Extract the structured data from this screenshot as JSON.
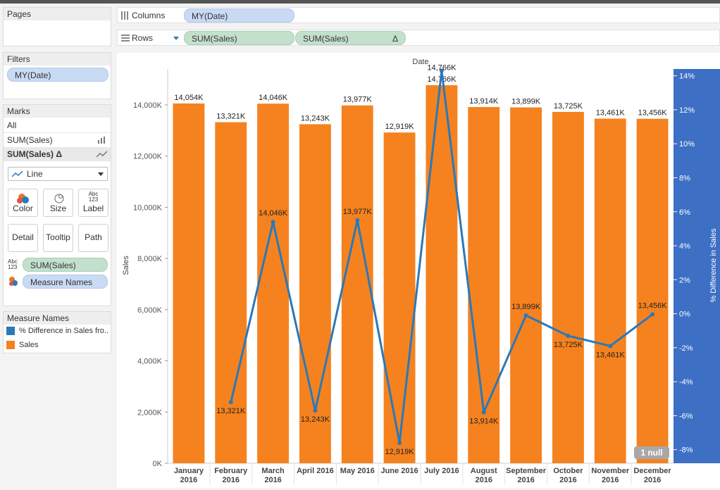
{
  "pages": {
    "title": "Pages"
  },
  "filters": {
    "title": "Filters",
    "pill": "MY(Date)"
  },
  "columns": {
    "label": "Columns",
    "pill": "MY(Date)"
  },
  "rows": {
    "label": "Rows",
    "pill1": "SUM(Sales)",
    "pill2": "SUM(Sales)",
    "pill2_delta": "Δ"
  },
  "marks": {
    "title": "Marks",
    "all": "All",
    "layer1": "SUM(Sales)",
    "layer2": "SUM(Sales)",
    "layer2_delta": "Δ",
    "mark_type": "Line",
    "buttons": {
      "color": "Color",
      "size": "Size",
      "label": "Label",
      "detail": "Detail",
      "tooltip": "Tooltip",
      "path": "Path"
    },
    "label_glyph_top": "Abc",
    "label_glyph_bottom": "123",
    "field_label": "SUM(Sales)",
    "field_color": "Measure Names"
  },
  "legend": {
    "title": "Measure Names",
    "items": [
      {
        "label": "% Difference in Sales fro..",
        "color": "#2c78b8"
      },
      {
        "label": "Sales",
        "color": "#f5821f"
      }
    ]
  },
  "chart_data": {
    "type": "bar",
    "header": "Date",
    "ylabel": "Sales",
    "y2label": "% Difference in Sales",
    "ylim": [
      0,
      15400
    ],
    "y2lim": [
      -8.8,
      14.4
    ],
    "yticks": [
      "0K",
      "2,000K",
      "4,000K",
      "6,000K",
      "8,000K",
      "10,000K",
      "12,000K",
      "14,000K"
    ],
    "ytick_values": [
      0,
      2000,
      4000,
      6000,
      8000,
      10000,
      12000,
      14000
    ],
    "y2ticks": [
      "-8%",
      "-6%",
      "-4%",
      "-2%",
      "0%",
      "2%",
      "4%",
      "6%",
      "8%",
      "10%",
      "12%",
      "14%"
    ],
    "y2tick_values": [
      -8,
      -6,
      -4,
      -2,
      0,
      2,
      4,
      6,
      8,
      10,
      12,
      14
    ],
    "categories": [
      [
        "January",
        "2016"
      ],
      [
        "February",
        "2016"
      ],
      [
        "March",
        "2016"
      ],
      [
        "April 2016",
        ""
      ],
      [
        "May 2016",
        ""
      ],
      [
        "June 2016",
        ""
      ],
      [
        "July 2016",
        ""
      ],
      [
        "August",
        "2016"
      ],
      [
        "September",
        "2016"
      ],
      [
        "October",
        "2016"
      ],
      [
        "November",
        "2016"
      ],
      [
        "December",
        "2016"
      ]
    ],
    "series": [
      {
        "name": "Sales",
        "kind": "bar",
        "color": "#f5821f",
        "values": [
          14054,
          13321,
          14046,
          13243,
          13977,
          12919,
          14766,
          13914,
          13899,
          13725,
          13461,
          13456
        ],
        "labels": [
          "14,054K",
          "13,321K",
          "14,046K",
          "13,243K",
          "13,977K",
          "12,919K",
          "14,766K",
          "13,914K",
          "13,899K",
          "13,725K",
          "13,461K",
          "13,456K"
        ]
      },
      {
        "name": "% Difference in Sales",
        "kind": "line",
        "color": "#2c78b8",
        "values": [
          null,
          -5.2,
          5.4,
          -5.7,
          5.5,
          -7.6,
          14.3,
          -5.8,
          -0.1,
          -1.3,
          -1.9,
          -0.04
        ],
        "labels": [
          "",
          "13,321K",
          "14,046K",
          "13,243K",
          "13,977K",
          "12,919K",
          "14,766K",
          "13,914K",
          "13,899K",
          "13,725K",
          "13,461K",
          "13,456K"
        ]
      }
    ],
    "null_badge": "1 null"
  }
}
